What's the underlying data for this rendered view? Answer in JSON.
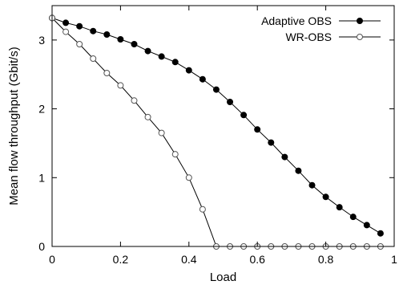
{
  "chart_data": {
    "type": "line",
    "title": "",
    "xlabel": "Load",
    "ylabel": "Mean flow throughput (Gbit/s)",
    "xlim": [
      0,
      1
    ],
    "ylim": [
      0,
      3.5
    ],
    "x_ticks": [
      "0",
      "0.2",
      "0.4",
      "0.6",
      "0.8",
      "1"
    ],
    "y_ticks": [
      "0",
      "1",
      "2",
      "3"
    ],
    "grid": false,
    "legend_position": "top-right",
    "series": [
      {
        "name": "Adaptive OBS",
        "marker": "filled-circle",
        "color": "#000000",
        "x": [
          0,
          0.04,
          0.08,
          0.12,
          0.16,
          0.2,
          0.24,
          0.28,
          0.32,
          0.36,
          0.4,
          0.44,
          0.48,
          0.52,
          0.56,
          0.6,
          0.64,
          0.68,
          0.72,
          0.76,
          0.8,
          0.84,
          0.88,
          0.92,
          0.96
        ],
        "y": [
          3.32,
          3.25,
          3.2,
          3.13,
          3.08,
          3.01,
          2.94,
          2.84,
          2.76,
          2.68,
          2.56,
          2.43,
          2.28,
          2.1,
          1.91,
          1.7,
          1.51,
          1.3,
          1.1,
          0.89,
          0.72,
          0.57,
          0.43,
          0.31,
          0.19
        ]
      },
      {
        "name": "WR-OBS",
        "marker": "open-circle",
        "color": "#000000",
        "x": [
          0,
          0.04,
          0.08,
          0.12,
          0.16,
          0.2,
          0.24,
          0.28,
          0.32,
          0.36,
          0.4,
          0.44,
          0.48,
          0.52,
          0.56,
          0.6,
          0.64,
          0.68,
          0.72,
          0.76,
          0.8,
          0.84,
          0.88,
          0.92,
          0.96
        ],
        "y": [
          3.32,
          3.12,
          2.94,
          2.73,
          2.52,
          2.34,
          2.12,
          1.88,
          1.65,
          1.34,
          1.0,
          0.54,
          0.0,
          0.0,
          0.0,
          0.0,
          0.0,
          0.0,
          0.0,
          0.0,
          0.0,
          0.0,
          0.0,
          0.0,
          0.0
        ]
      }
    ]
  }
}
